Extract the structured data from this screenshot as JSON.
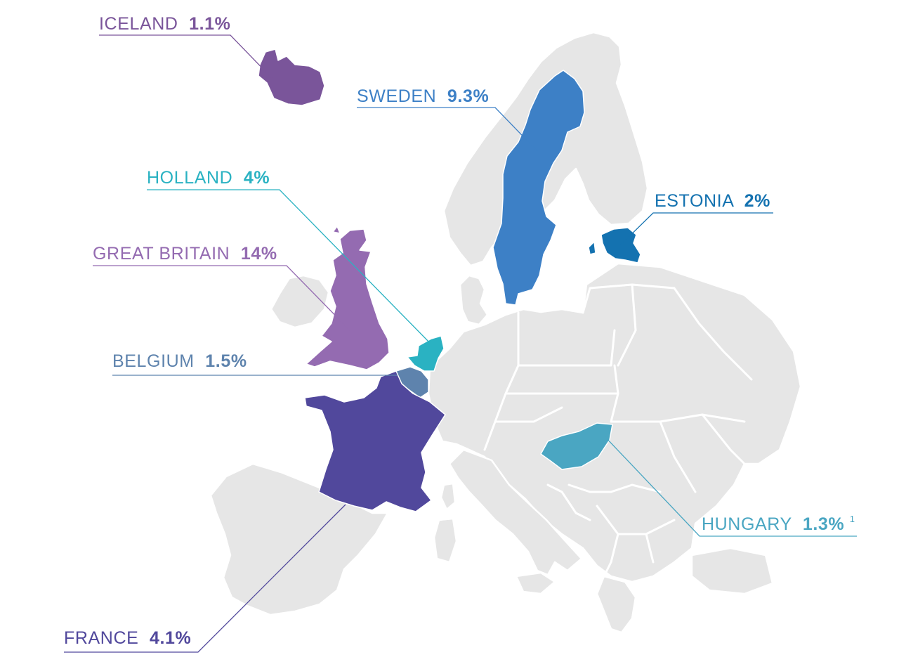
{
  "colors": {
    "land": "#e6e6e6",
    "iceland": "#7a559a",
    "sweden": "#3d80c6",
    "holland": "#2ab2c2",
    "great_britain": "#946bb1",
    "belgium": "#5e83ad",
    "france": "#51489c",
    "estonia": "#1472b0",
    "hungary": "#4aa6c2"
  },
  "countries": [
    {
      "key": "iceland",
      "name": "ICELAND",
      "value": "1.1%"
    },
    {
      "key": "sweden",
      "name": "SWEDEN",
      "value": "9.3%"
    },
    {
      "key": "holland",
      "name": "HOLLAND",
      "value": "4%"
    },
    {
      "key": "estonia",
      "name": "ESTONIA",
      "value": "2%"
    },
    {
      "key": "great_britain",
      "name": "GREAT BRITAIN",
      "value": "14%"
    },
    {
      "key": "belgium",
      "name": "BELGIUM",
      "value": "1.5%"
    },
    {
      "key": "hungary",
      "name": "HUNGARY",
      "value": "1.3%",
      "footnote": "1"
    },
    {
      "key": "france",
      "name": "FRANCE",
      "value": "4.1%"
    }
  ]
}
